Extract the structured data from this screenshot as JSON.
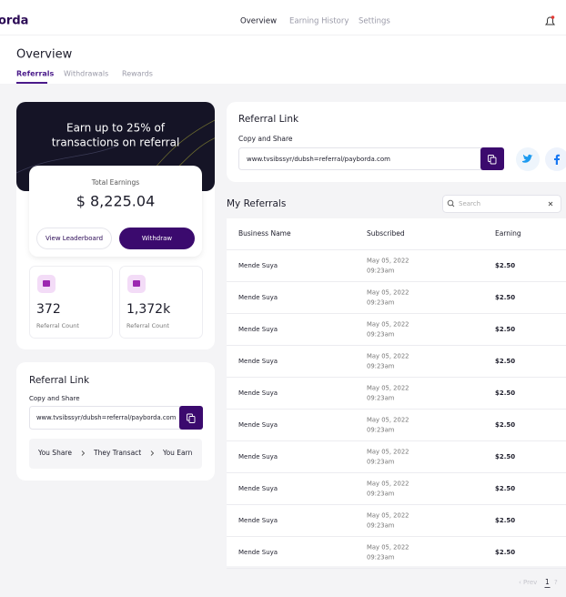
{
  "header": {
    "logo": "orda",
    "nav": [
      "Overview",
      "Earning History",
      "Settings"
    ]
  },
  "page": {
    "title": "Overview",
    "tabs": [
      "Referrals",
      "Withdrawals",
      "Rewards"
    ]
  },
  "banner": {
    "line1": "Earn up to 25% of",
    "line2": "transactions on referral"
  },
  "earnings": {
    "label": "Total Earnings",
    "amount": "$ 8,225.04",
    "buttons": [
      "View Leaderboard",
      "Withdraw"
    ]
  },
  "stats": [
    {
      "value": "372",
      "label": "Referral Count"
    },
    {
      "value": "1,372k",
      "label": "Referral Count"
    }
  ],
  "left_link": {
    "title": "Referral Link",
    "subtitle": "Copy and Share",
    "url": "www.tvsibssyr/dubsh=referral/payborda.com",
    "steps": [
      "You Share",
      "They Transact",
      "You Earn"
    ]
  },
  "right_link": {
    "title": "Referral Link",
    "subtitle": "Copy and Share",
    "url": "www.tvsibssyr/dubsh=referral/payborda.com"
  },
  "referrals": {
    "title": "My Referrals",
    "search": "Search",
    "columns": [
      "Business Name",
      "Subscribed",
      "Earning"
    ],
    "rows": [
      [
        "Mende Suya",
        "May 05, 2022",
        "09:23am",
        "$2.50"
      ],
      [
        "Mende Suya",
        "May 05, 2022",
        "09:23am",
        "$2.50"
      ],
      [
        "Mende Suya",
        "May 05, 2022",
        "09:23am",
        "$2.50"
      ],
      [
        "Mende Suya",
        "May 05, 2022",
        "09:23am",
        "$2.50"
      ],
      [
        "Mende Suya",
        "May 05, 2022",
        "09:23am",
        "$2.50"
      ],
      [
        "Mende Suya",
        "May 05, 2022",
        "09:23am",
        "$2.50"
      ],
      [
        "Mende Suya",
        "May 05, 2022",
        "09:23am",
        "$2.50"
      ],
      [
        "Mende Suya",
        "May 05, 2022",
        "09:23am",
        "$2.50"
      ],
      [
        "Mende Suya",
        "May 05, 2022",
        "09:23am",
        "$2.50"
      ],
      [
        "Mende Suya",
        "May 05, 2022",
        "09:23am",
        "$2.50"
      ]
    ],
    "pagination": {
      "prev": "‹ Prev",
      "current": "1",
      "next": "?"
    }
  }
}
